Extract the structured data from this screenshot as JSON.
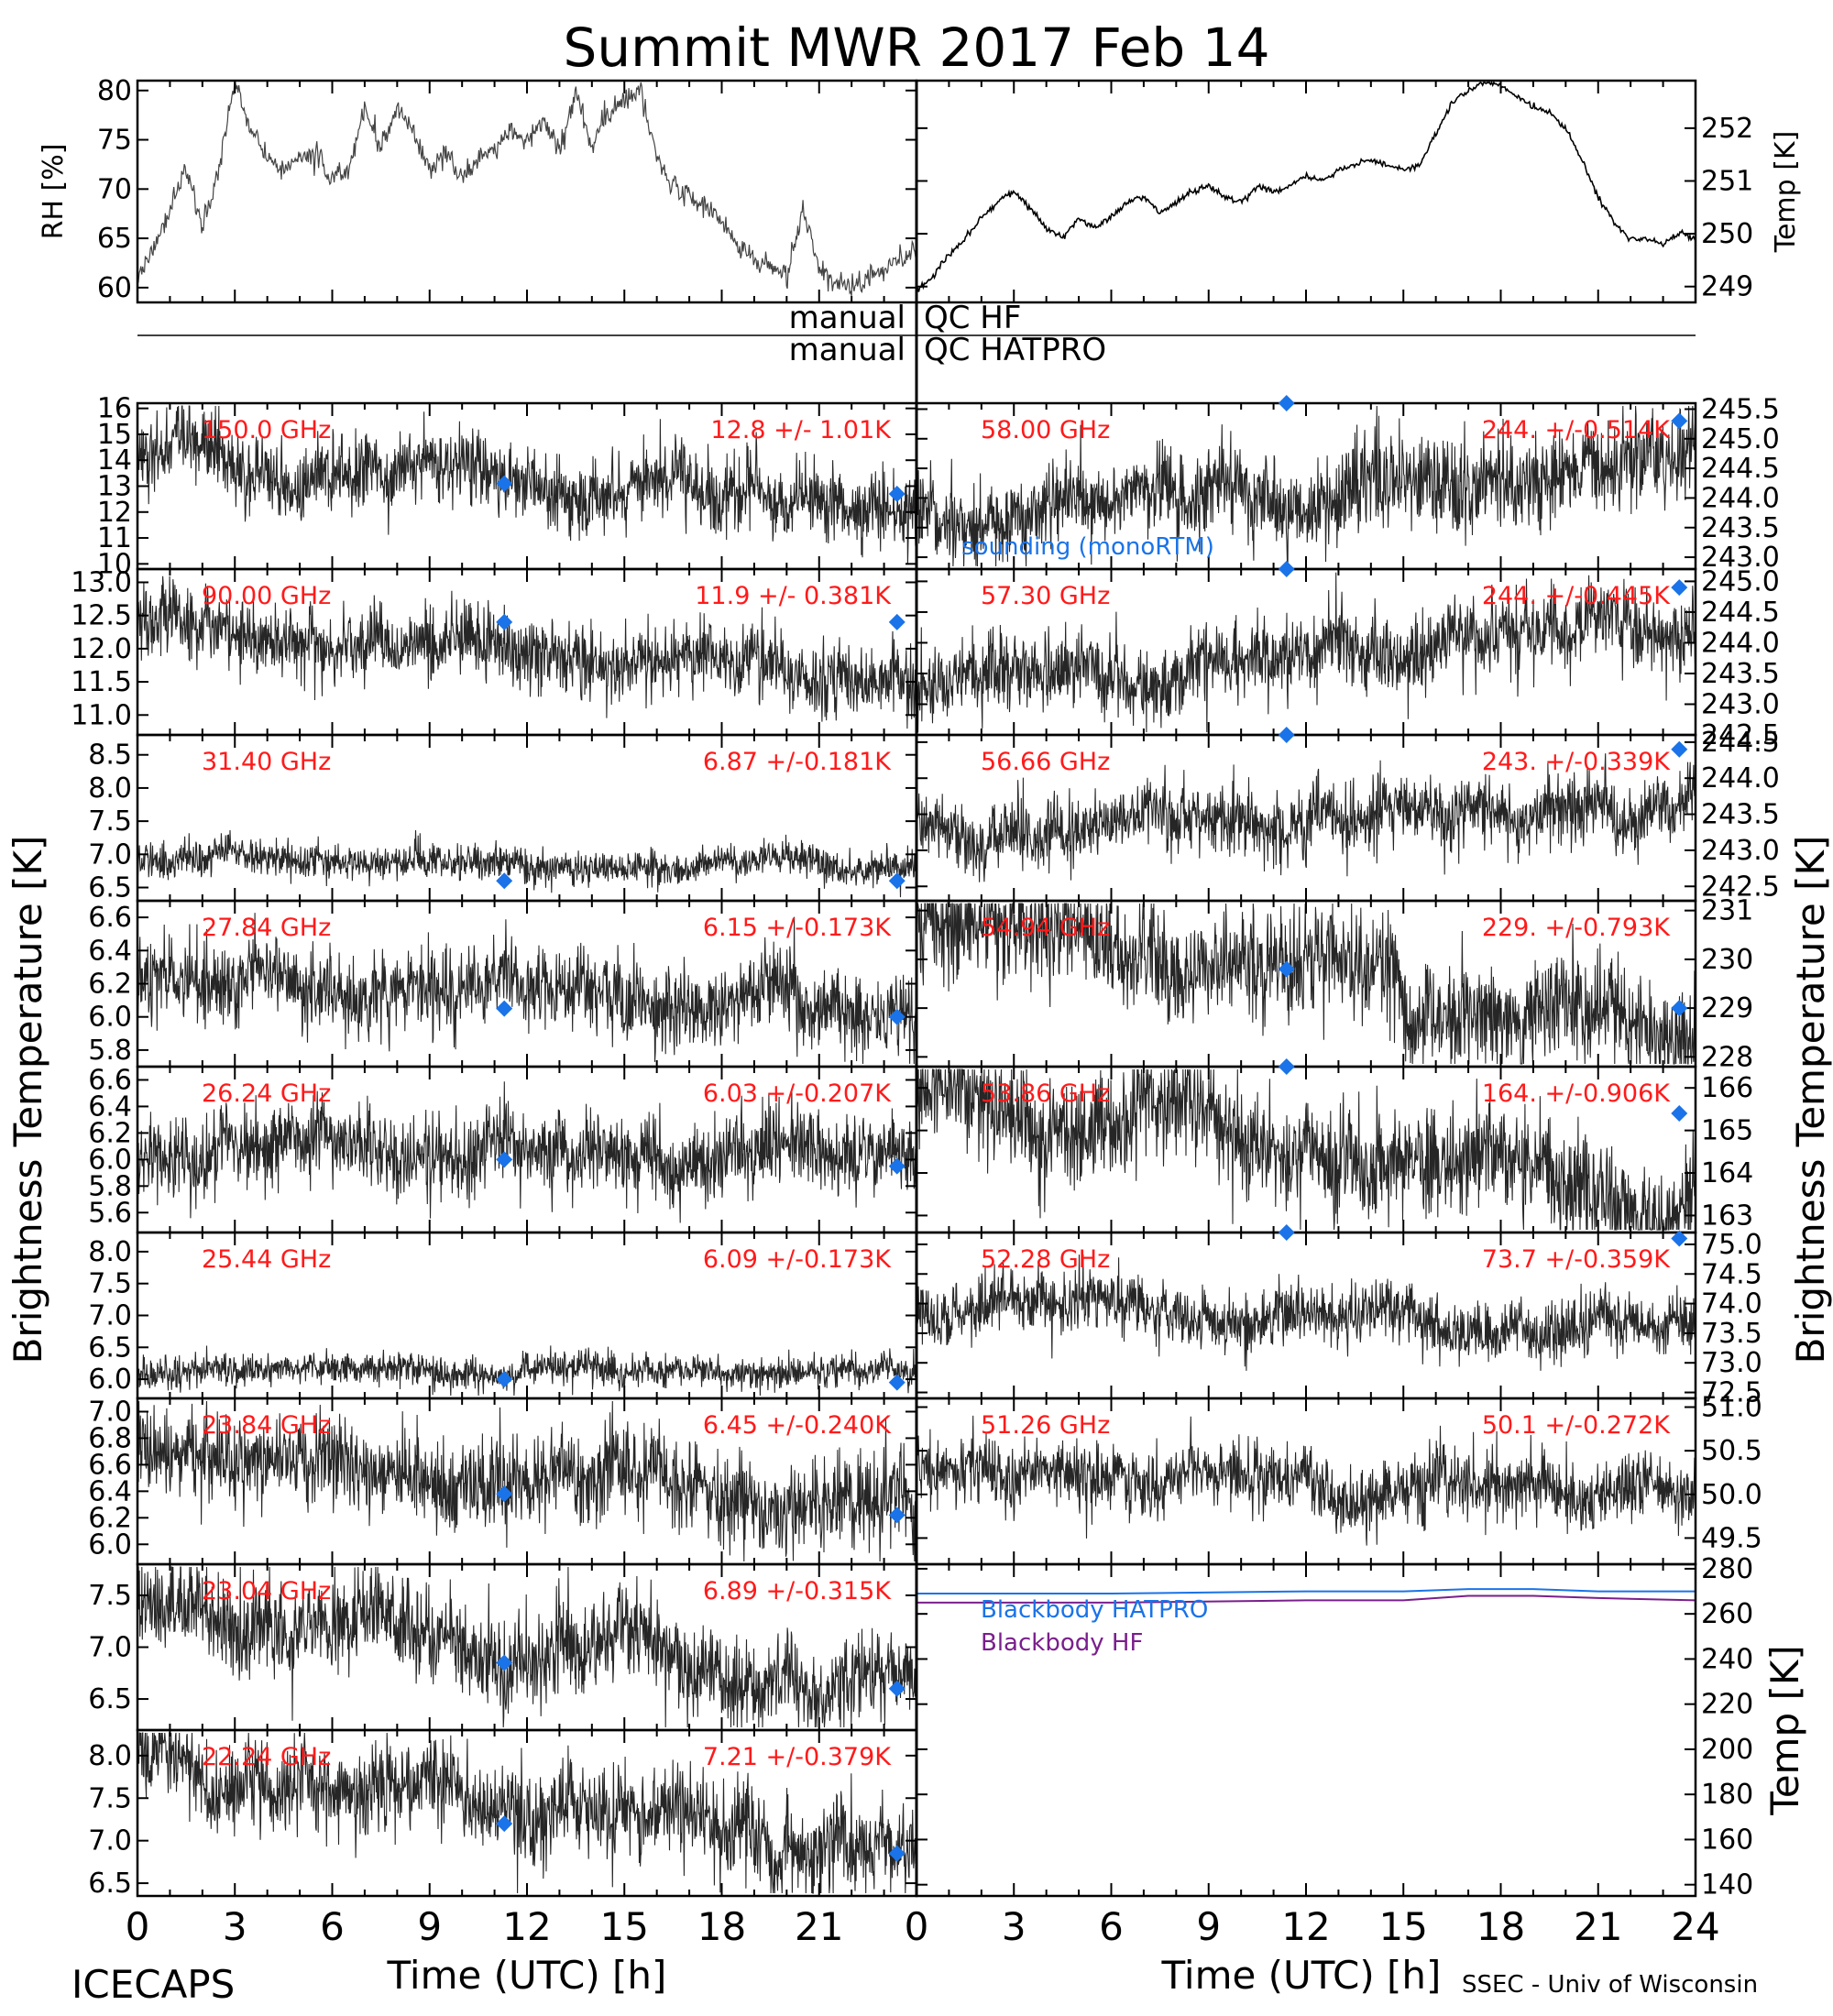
{
  "title": "Summit MWR 2017 Feb 14",
  "qc_labels": {
    "hf_left": "manual",
    "hf_right": "QC HF",
    "hatpro_left": "manual",
    "hatpro_right": "QC HATPRO"
  },
  "footer": {
    "left": "ICECAPS",
    "right": "SSEC - Univ of Wisconsin"
  },
  "x_axis": {
    "label": "Time (UTC) [h]",
    "ticks": [
      "0",
      "3",
      "6",
      "9",
      "12",
      "15",
      "18",
      "21",
      "24"
    ],
    "left_ticks": [
      "0",
      "3",
      "6",
      "9",
      "12",
      "15",
      "18",
      "21"
    ]
  },
  "side_labels": {
    "left": "Brightness Temperature [K]",
    "right": "Brightness Temperature [K]"
  },
  "colors": {
    "data": "#000000",
    "label": "#ff1a1a",
    "sounding": "#1a73e8",
    "hatpro": "#1a73e8",
    "hf": "#7a1f8c"
  },
  "chart_data": [
    {
      "id": "rh",
      "type": "scatter",
      "ylabel": "RH [%]",
      "ylim": [
        58.5,
        81
      ],
      "yticks": [
        60,
        65,
        70,
        75,
        80
      ],
      "xlim": [
        0,
        24
      ],
      "series": [
        {
          "x": [
            0,
            0.5,
            1,
            1.5,
            2,
            2.5,
            3,
            3.5,
            4,
            4.5,
            5,
            5.5,
            6,
            6.5,
            7,
            7.5,
            8,
            8.5,
            9,
            9.5,
            10,
            10.5,
            11,
            11.5,
            12,
            12.5,
            13,
            13.5,
            14,
            14.5,
            15,
            15.5,
            16,
            16.5,
            17,
            17.5,
            18,
            18.5,
            19,
            19.5,
            20,
            20.5,
            21,
            21.5,
            22,
            22.5,
            23,
            23.5,
            24
          ],
          "y": [
            61,
            64,
            68,
            72,
            66,
            72,
            81,
            76,
            73,
            72,
            73,
            73.5,
            71,
            72,
            78,
            74,
            78,
            76,
            72,
            74,
            71,
            73,
            74,
            76,
            75,
            77,
            74,
            80,
            74,
            78,
            79,
            80,
            73,
            70,
            69.5,
            68,
            67,
            64,
            63,
            62,
            61,
            68,
            62,
            60.5,
            60,
            61,
            62,
            63,
            64
          ]
        }
      ]
    },
    {
      "id": "temp",
      "type": "line",
      "ylabel": "Temp [K]",
      "ylim": [
        248.7,
        252.9
      ],
      "yticks": [
        249,
        250,
        251,
        252
      ],
      "xlim": [
        0,
        24
      ],
      "series": [
        {
          "x": [
            0,
            0.5,
            1,
            1.5,
            2,
            2.5,
            3,
            3.5,
            4,
            4.5,
            5,
            5.5,
            6,
            6.5,
            7,
            7.5,
            8,
            8.5,
            9,
            9.5,
            10,
            10.5,
            11,
            11.5,
            12,
            12.5,
            13,
            13.5,
            14,
            14.5,
            15,
            15.5,
            16,
            16.5,
            17,
            17.5,
            18,
            18.5,
            19,
            19.5,
            20,
            20.5,
            21,
            21.5,
            22,
            22.5,
            23,
            23.5,
            24
          ],
          "y": [
            248.9,
            249.2,
            249.6,
            249.9,
            250.3,
            250.6,
            250.8,
            250.5,
            250.1,
            249.9,
            250.3,
            250.1,
            250.3,
            250.6,
            250.7,
            250.4,
            250.6,
            250.8,
            250.9,
            250.7,
            250.6,
            250.9,
            250.8,
            250.9,
            251.1,
            251.0,
            251.2,
            251.3,
            251.4,
            251.3,
            251.2,
            251.3,
            251.9,
            252.5,
            252.7,
            252.9,
            252.8,
            252.6,
            252.4,
            252.3,
            252.0,
            251.4,
            250.7,
            250.2,
            249.9,
            249.9,
            249.8,
            250.0,
            249.9
          ]
        }
      ]
    },
    {
      "id": "c150",
      "freq": "150.0 GHz",
      "stat": "12.8 +/- 1.01K",
      "ylim": [
        9.8,
        16.2
      ],
      "yticks": [
        10,
        11,
        12,
        13,
        14,
        15,
        16
      ],
      "start": 14,
      "end": 12.2,
      "noise": 1.01,
      "sounding": [
        {
          "x": 11.3,
          "y": 13.1
        },
        {
          "x": 23.4,
          "y": 12.7
        }
      ]
    },
    {
      "id": "c58",
      "freq": "58.00 GHz",
      "stat": "244. +/-0.514K",
      "ylim": [
        242.8,
        245.6
      ],
      "yticks": [
        243.0,
        243.5,
        244.0,
        244.5,
        245.0,
        245.5
      ],
      "start": 243.7,
      "end": 244.6,
      "noise": 0.514,
      "sounding": [
        {
          "x": 11.4,
          "y": 245.6
        },
        {
          "x": 23.5,
          "y": 245.3
        }
      ],
      "sounding_label": "sounding (monoRTM)"
    },
    {
      "id": "c90",
      "freq": "90.00 GHz",
      "stat": "11.9 +/- 0.381K",
      "ylim": [
        10.7,
        13.2
      ],
      "yticks": [
        11.0,
        11.5,
        12.0,
        12.5,
        13.0
      ],
      "start": 12.3,
      "end": 11.6,
      "noise": 0.381,
      "sounding": [
        {
          "x": 11.3,
          "y": 12.4
        },
        {
          "x": 23.4,
          "y": 12.4
        }
      ]
    },
    {
      "id": "c57_30",
      "freq": "57.30 GHz",
      "stat": "244. +/-0.445K",
      "ylim": [
        242.5,
        245.2
      ],
      "yticks": [
        242.5,
        243.0,
        243.5,
        244.0,
        244.5,
        245.0
      ],
      "start": 243.3,
      "end": 244.3,
      "noise": 0.445,
      "sounding": [
        {
          "x": 11.4,
          "y": 245.2
        },
        {
          "x": 23.5,
          "y": 244.9
        }
      ]
    },
    {
      "id": "c31",
      "freq": "31.40 GHz",
      "stat": "6.87 +/-0.181K",
      "ylim": [
        6.3,
        8.8
      ],
      "yticks": [
        6.5,
        7.0,
        7.5,
        8.0,
        8.5
      ],
      "start": 6.9,
      "end": 6.85,
      "noise": 0.181,
      "sounding": [
        {
          "x": 11.3,
          "y": 6.6
        },
        {
          "x": 23.4,
          "y": 6.6
        }
      ]
    },
    {
      "id": "c56_66",
      "freq": "56.66 GHz",
      "stat": "243. +/-0.339K",
      "ylim": [
        242.3,
        244.6
      ],
      "yticks": [
        242.5,
        243.0,
        243.5,
        244.0,
        244.5
      ],
      "start": 243.2,
      "end": 243.7,
      "noise": 0.339,
      "sounding": [
        {
          "x": 11.4,
          "y": 244.6
        },
        {
          "x": 23.5,
          "y": 244.4
        }
      ]
    },
    {
      "id": "c27",
      "freq": "27.84 GHz",
      "stat": "6.15 +/-0.173K",
      "ylim": [
        5.7,
        6.7
      ],
      "yticks": [
        5.8,
        6.0,
        6.2,
        6.4,
        6.6
      ],
      "start": 6.25,
      "end": 6.05,
      "noise": 0.173,
      "sounding": [
        {
          "x": 11.3,
          "y": 6.05
        },
        {
          "x": 23.4,
          "y": 6.0
        }
      ]
    },
    {
      "id": "c54",
      "freq": "54.94 GHz",
      "stat": "229. +/-0.793K",
      "ylim": [
        227.8,
        231.2
      ],
      "yticks": [
        228,
        229,
        230,
        231
      ],
      "start": 230.8,
      "end": 228.6,
      "noise": 0.793,
      "sounding": [
        {
          "x": 11.4,
          "y": 229.8
        },
        {
          "x": 23.5,
          "y": 229.0
        }
      ]
    },
    {
      "id": "c26",
      "freq": "26.24 GHz",
      "stat": "6.03 +/-0.207K",
      "ylim": [
        5.45,
        6.7
      ],
      "yticks": [
        5.6,
        5.8,
        6.0,
        6.2,
        6.4,
        6.6
      ],
      "start": 6.1,
      "end": 6.0,
      "noise": 0.207,
      "sounding": [
        {
          "x": 11.3,
          "y": 6.0
        },
        {
          "x": 23.4,
          "y": 5.95
        }
      ]
    },
    {
      "id": "c53",
      "freq": "53.86 GHz",
      "stat": "164. +/-0.906K",
      "ylim": [
        162.6,
        166.5
      ],
      "yticks": [
        163,
        164,
        165,
        166
      ],
      "start": 166,
      "end": 163.3,
      "noise": 0.906,
      "sounding": [
        {
          "x": 11.4,
          "y": 166.5
        },
        {
          "x": 23.5,
          "y": 165.4
        }
      ]
    },
    {
      "id": "c25",
      "freq": "25.44 GHz",
      "stat": "6.09 +/-0.173K",
      "ylim": [
        5.7,
        8.3
      ],
      "yticks": [
        6.0,
        6.5,
        7.0,
        7.5,
        8.0
      ],
      "start": 6.15,
      "end": 6.05,
      "noise": 0.173,
      "sounding": [
        {
          "x": 11.3,
          "y": 6.0
        },
        {
          "x": 23.4,
          "y": 5.95
        }
      ]
    },
    {
      "id": "c52",
      "freq": "52.28 GHz",
      "stat": "73.7 +/-0.359K",
      "ylim": [
        72.4,
        75.2
      ],
      "yticks": [
        72.5,
        73.0,
        73.5,
        74.0,
        74.5,
        75.0
      ],
      "start": 74.0,
      "end": 73.5,
      "noise": 0.359,
      "sounding": [
        {
          "x": 11.4,
          "y": 75.3
        },
        {
          "x": 23.5,
          "y": 75.1
        }
      ]
    },
    {
      "id": "c23_84",
      "freq": "23.84 GHz",
      "stat": "6.45 +/-0.240K",
      "ylim": [
        5.85,
        7.1
      ],
      "yticks": [
        6.0,
        6.2,
        6.4,
        6.6,
        6.8,
        7.0
      ],
      "start": 6.7,
      "end": 6.25,
      "noise": 0.24,
      "sounding": [
        {
          "x": 11.3,
          "y": 6.38
        },
        {
          "x": 23.4,
          "y": 6.22
        }
      ]
    },
    {
      "id": "c51",
      "freq": "51.26 GHz",
      "stat": "50.1 +/-0.272K",
      "ylim": [
        49.2,
        51.1
      ],
      "yticks": [
        49.5,
        50.0,
        50.5,
        51.0
      ],
      "start": 50.2,
      "end": 50.1,
      "noise": 0.272,
      "sounding": []
    },
    {
      "id": "c23_04",
      "freq": "23.04 GHz",
      "stat": "6.89 +/-0.315K",
      "ylim": [
        6.2,
        7.8
      ],
      "yticks": [
        6.5,
        7.0,
        7.5
      ],
      "start": 7.4,
      "end": 6.6,
      "noise": 0.315,
      "sounding": [
        {
          "x": 11.3,
          "y": 6.85
        },
        {
          "x": 23.4,
          "y": 6.6
        }
      ]
    },
    {
      "id": "bb",
      "type": "line",
      "ylabel": "Temp [K]",
      "ylim": [
        135,
        282
      ],
      "yticks": [
        140,
        160,
        180,
        200,
        220,
        240,
        260,
        280
      ],
      "xlim": [
        0,
        24
      ],
      "legend": [
        "Blackbody HATPRO",
        "Blackbody HF"
      ],
      "series": [
        {
          "name": "Blackbody HATPRO",
          "x": [
            0,
            6,
            12,
            15,
            17,
            19,
            21,
            24
          ],
          "y": [
            269,
            269,
            270,
            270,
            271,
            271,
            270,
            270
          ]
        },
        {
          "name": "Blackbody HF",
          "x": [
            0,
            6,
            12,
            15,
            17,
            19,
            21,
            24
          ],
          "y": [
            265,
            265,
            266,
            266,
            268,
            268,
            267,
            266
          ]
        }
      ]
    },
    {
      "id": "c22",
      "freq": "22.24 GHz",
      "stat": "7.21 +/-0.379K",
      "ylim": [
        6.35,
        8.3
      ],
      "yticks": [
        6.5,
        7.0,
        7.5,
        8.0
      ],
      "start": 7.9,
      "end": 6.95,
      "noise": 0.379,
      "sounding": [
        {
          "x": 11.3,
          "y": 7.2
        },
        {
          "x": 23.4,
          "y": 6.85
        }
      ]
    }
  ]
}
